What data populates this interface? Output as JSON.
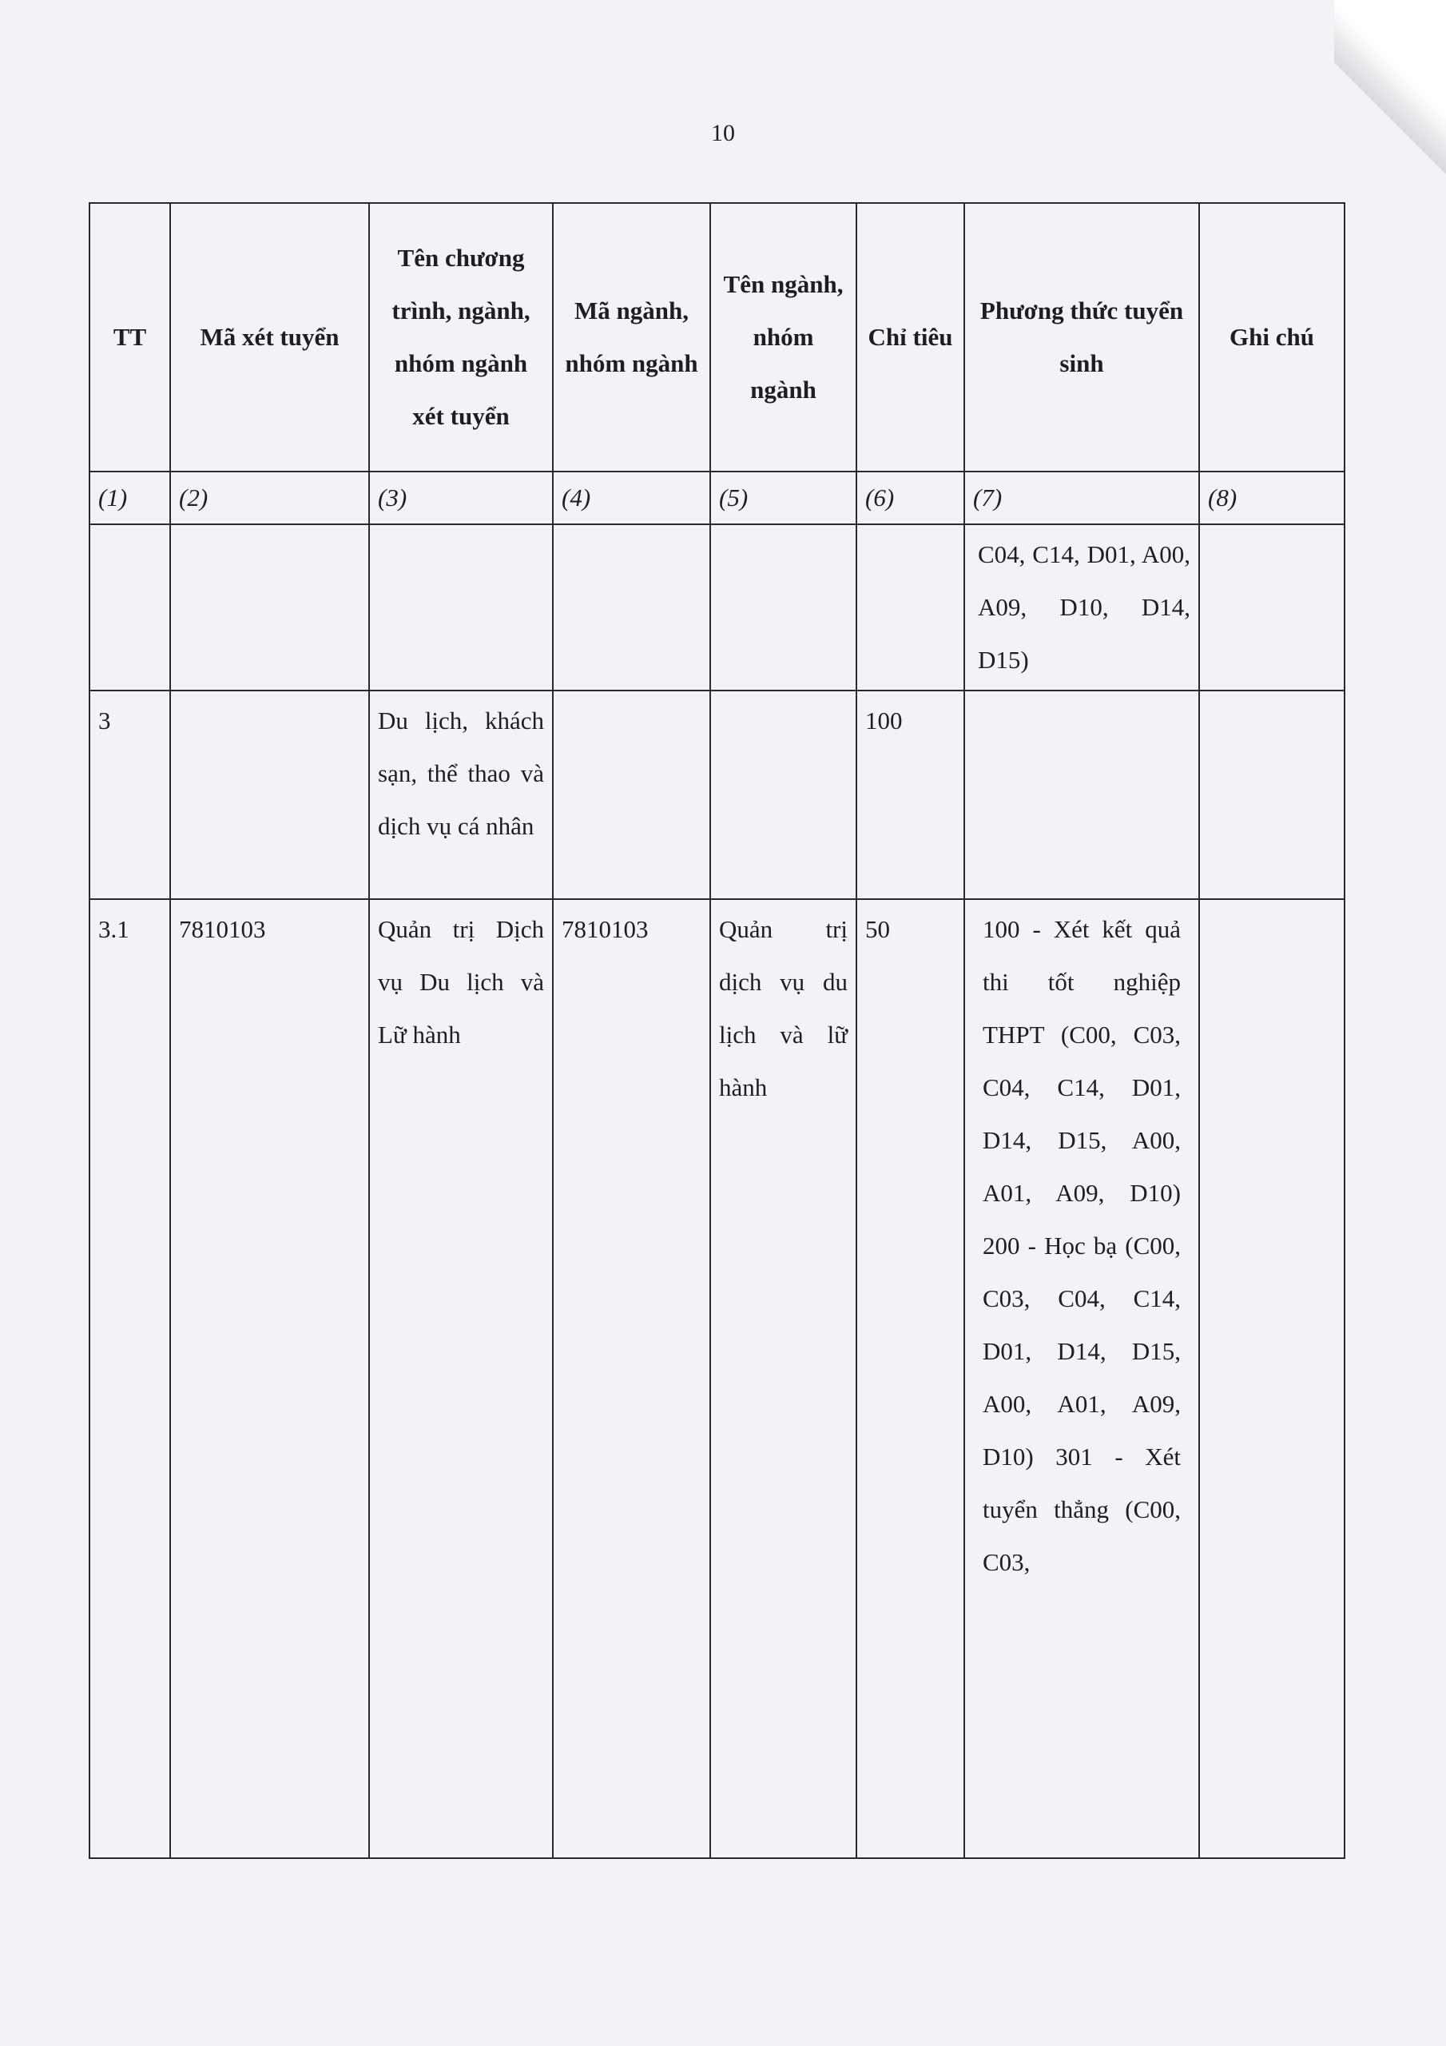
{
  "page_number": "10",
  "table": {
    "headers": [
      "TT",
      "Mã xét tuyển",
      "Tên chương trình, ngành, nhóm ngành xét tuyển",
      "Mã ngành, nhóm ngành",
      "Tên ngành, nhóm ngành",
      "Chỉ tiêu",
      "Phương thức tuyển sinh",
      "Ghi chú"
    ],
    "column_numbers": [
      "(1)",
      "(2)",
      "(3)",
      "(4)",
      "(5)",
      "(6)",
      "(7)",
      "(8)"
    ],
    "rows": [
      [
        "",
        "",
        "",
        "",
        "",
        "",
        "C04, C14, D01, A00, A09, D10, D14, D15)",
        ""
      ],
      [
        "3",
        "",
        "Du lịch, khách sạn, thể thao và dịch vụ cá nhân",
        "",
        "",
        "100",
        "",
        ""
      ],
      [
        "3.1",
        "7810103",
        "Quản trị Dịch vụ Du lịch và Lữ hành",
        "7810103",
        "Quản trị dịch vụ du lịch và lữ hành",
        "50",
        "100 - Xét kết quả thi tốt nghiệp THPT (C00, C03, C04, C14, D01, D14, D15, A00, A01, A09, D10) 200 - Học bạ (C00, C03, C04, C14, D01, D14, D15, A00, A01, A09, D10) 301 - Xét tuyển thẳng (C00, C03,",
        ""
      ]
    ]
  }
}
